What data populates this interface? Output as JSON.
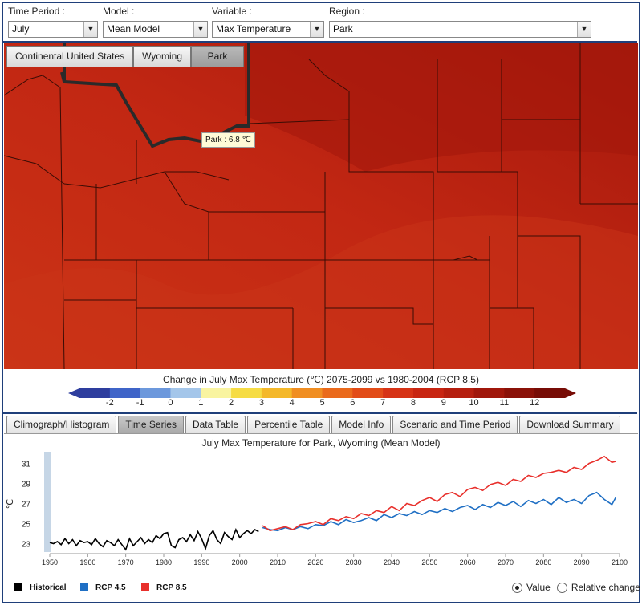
{
  "controls": {
    "time_period": {
      "label": "Time Period :",
      "value": "July"
    },
    "model": {
      "label": "Model :",
      "value": "Mean Model"
    },
    "variable": {
      "label": "Variable :",
      "value": "Max Temperature"
    },
    "region": {
      "label": "Region :",
      "value": "Park"
    }
  },
  "map": {
    "tabs": [
      "Continental United States",
      "Wyoming",
      "Park"
    ],
    "active_tab": "Park",
    "tooltip": "Park : 6.8 ℃"
  },
  "legend": {
    "title": "Change in July Max Temperature (℃) 2075-2099 vs 1980-2004 (RCP 8.5)",
    "ticks": [
      "-2",
      "-1",
      "0",
      "1",
      "2",
      "3",
      "4",
      "5",
      "6",
      "7",
      "8",
      "9",
      "10",
      "11",
      "12"
    ],
    "colors": [
      "#2e3e9e",
      "#3f64c8",
      "#6c98dc",
      "#a4c6ea",
      "#f9f4a0",
      "#f6dc44",
      "#f4b82a",
      "#f08e22",
      "#ea6a1c",
      "#e24c18",
      "#d63316",
      "#c82612",
      "#b51f0f",
      "#a0170b",
      "#8a1108",
      "#770c06"
    ]
  },
  "bottom_tabs": [
    "Climograph/Histogram",
    "Time Series",
    "Data Table",
    "Percentile Table",
    "Model Info",
    "Scenario and Time Period",
    "Download Summary"
  ],
  "active_bottom_tab": "Time Series",
  "chart_data": {
    "type": "line",
    "title": "July Max Temperature for Park, Wyoming (Mean Model)",
    "ylabel": "℃",
    "xlim": [
      1950,
      2100
    ],
    "ylim": [
      22,
      32
    ],
    "yticks": [
      23,
      25,
      27,
      29,
      31
    ],
    "xticks": [
      1950,
      1960,
      1970,
      1980,
      1990,
      2000,
      2010,
      2020,
      2030,
      2040,
      2050,
      2060,
      2070,
      2080,
      2090,
      2100
    ],
    "series": [
      {
        "name": "Historical",
        "color": "#000000",
        "x": [
          1950,
          1951,
          1952,
          1953,
          1954,
          1955,
          1956,
          1957,
          1958,
          1959,
          1960,
          1961,
          1962,
          1963,
          1964,
          1965,
          1966,
          1967,
          1968,
          1969,
          1970,
          1971,
          1972,
          1973,
          1974,
          1975,
          1976,
          1977,
          1978,
          1979,
          1980,
          1981,
          1982,
          1983,
          1984,
          1985,
          1986,
          1987,
          1988,
          1989,
          1990,
          1991,
          1992,
          1993,
          1994,
          1995,
          1996,
          1997,
          1998,
          1999,
          2000,
          2001,
          2002,
          2003,
          2004,
          2005
        ],
        "y": [
          23.1,
          23.0,
          23.2,
          22.9,
          23.5,
          23.0,
          23.4,
          22.8,
          23.3,
          23.1,
          23.2,
          22.9,
          23.5,
          23.0,
          22.7,
          23.3,
          23.1,
          22.8,
          23.4,
          22.9,
          22.4,
          23.5,
          22.8,
          23.2,
          23.6,
          23.0,
          23.4,
          23.1,
          23.8,
          23.5,
          24.0,
          24.1,
          22.8,
          22.6,
          23.4,
          23.6,
          23.2,
          23.9,
          23.3,
          24.2,
          23.5,
          22.5,
          23.8,
          24.3,
          23.4,
          23.0,
          24.1,
          23.7,
          23.4,
          24.4,
          23.6,
          24.0,
          24.3,
          24.0,
          24.4,
          24.2
        ]
      },
      {
        "name": "RCP 4.5",
        "color": "#1f6fc4",
        "x": [
          2006,
          2008,
          2010,
          2012,
          2014,
          2016,
          2018,
          2020,
          2022,
          2024,
          2026,
          2028,
          2030,
          2032,
          2034,
          2036,
          2038,
          2040,
          2042,
          2044,
          2046,
          2048,
          2050,
          2052,
          2054,
          2056,
          2058,
          2060,
          2062,
          2064,
          2066,
          2068,
          2070,
          2072,
          2074,
          2076,
          2078,
          2080,
          2082,
          2084,
          2086,
          2088,
          2090,
          2092,
          2094,
          2096,
          2098,
          2099
        ],
        "y": [
          24.6,
          24.4,
          24.3,
          24.6,
          24.4,
          24.7,
          24.5,
          24.9,
          24.8,
          25.2,
          24.9,
          25.4,
          25.1,
          25.3,
          25.6,
          25.3,
          25.9,
          25.6,
          26.0,
          25.8,
          26.2,
          25.9,
          26.3,
          26.1,
          26.5,
          26.2,
          26.6,
          26.8,
          26.4,
          26.9,
          26.6,
          27.1,
          26.8,
          27.2,
          26.7,
          27.3,
          27.0,
          27.4,
          26.9,
          27.6,
          27.1,
          27.4,
          27.0,
          27.8,
          28.1,
          27.4,
          26.9,
          27.6
        ]
      },
      {
        "name": "RCP 8.5",
        "color": "#e8302c",
        "x": [
          2006,
          2008,
          2010,
          2012,
          2014,
          2016,
          2018,
          2020,
          2022,
          2024,
          2026,
          2028,
          2030,
          2032,
          2034,
          2036,
          2038,
          2040,
          2042,
          2044,
          2046,
          2048,
          2050,
          2052,
          2054,
          2056,
          2058,
          2060,
          2062,
          2064,
          2066,
          2068,
          2070,
          2072,
          2074,
          2076,
          2078,
          2080,
          2082,
          2084,
          2086,
          2088,
          2090,
          2092,
          2094,
          2096,
          2098,
          2099
        ],
        "y": [
          24.8,
          24.3,
          24.5,
          24.7,
          24.4,
          24.9,
          25.0,
          25.2,
          24.9,
          25.5,
          25.3,
          25.7,
          25.5,
          26.0,
          25.8,
          26.3,
          26.1,
          26.7,
          26.3,
          27.0,
          26.8,
          27.3,
          27.6,
          27.2,
          27.9,
          28.1,
          27.7,
          28.4,
          28.6,
          28.3,
          28.9,
          29.1,
          28.8,
          29.4,
          29.2,
          29.8,
          29.6,
          30.0,
          30.1,
          30.3,
          30.1,
          30.6,
          30.4,
          31.0,
          31.3,
          31.7,
          31.1,
          31.2
        ]
      }
    ]
  },
  "chart_legend": [
    "Historical",
    "RCP 4.5",
    "RCP 8.5"
  ],
  "radio": {
    "value_label": "Value",
    "relative_label": "Relative change"
  }
}
